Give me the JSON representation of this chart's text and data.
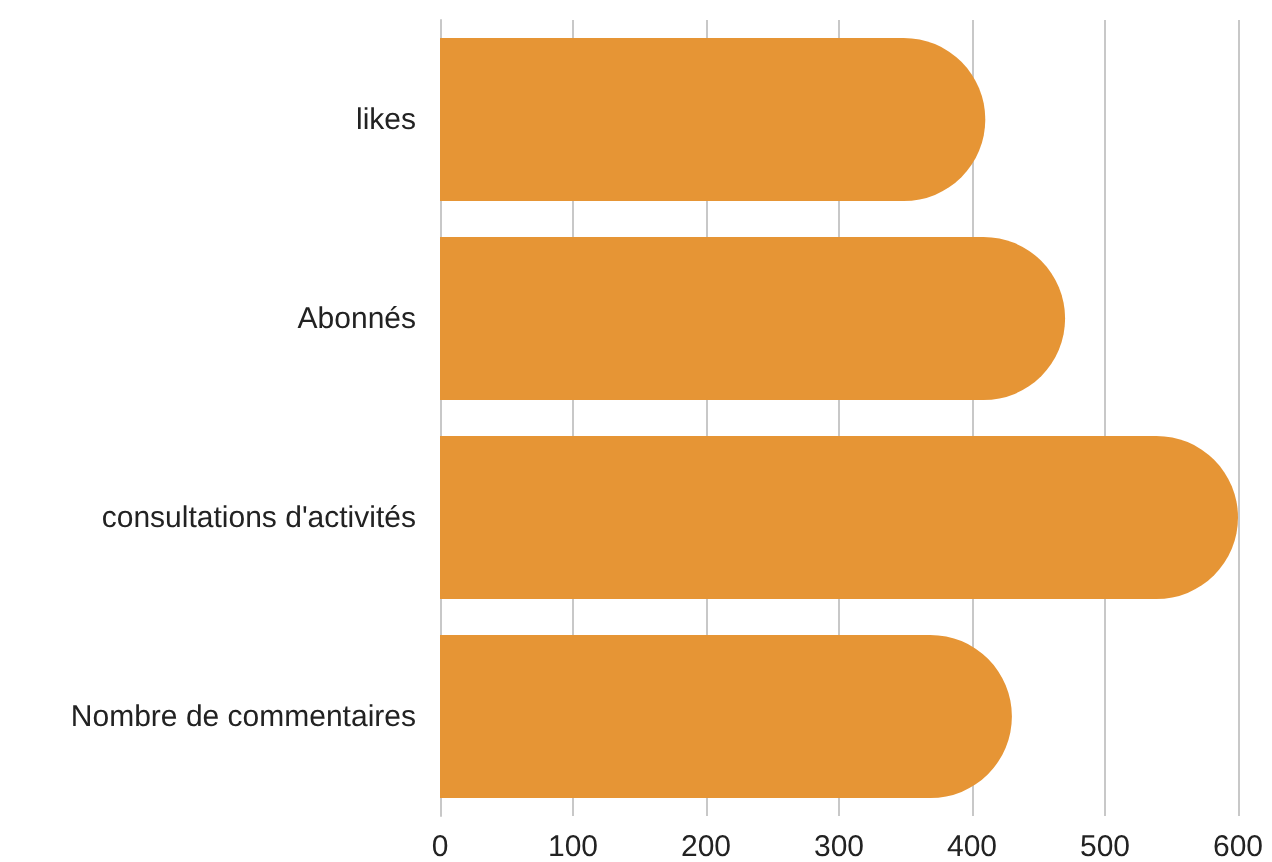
{
  "chart_data": {
    "type": "bar",
    "orientation": "horizontal",
    "categories": [
      "likes",
      "Abonnés",
      "consultations d'activités",
      "Nombre de commentaires"
    ],
    "values": [
      410,
      470,
      600,
      430
    ],
    "color": "#e69535",
    "xlim": [
      0,
      600
    ],
    "xticks": [
      0,
      100,
      200,
      300,
      400,
      500,
      600
    ],
    "grid": "x"
  }
}
